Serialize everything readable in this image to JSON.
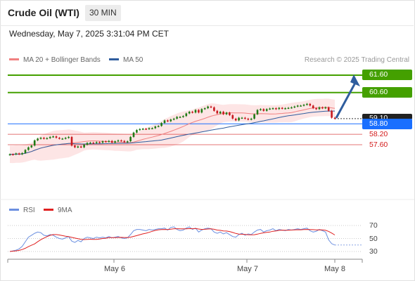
{
  "header": {
    "instrument": "Crude Oil (WTI)",
    "timeframe": "30 MIN",
    "datetime": "Wednesday, May 7, 2025 3:31:04 PM CET"
  },
  "legend": {
    "ma20": "MA 20 + Bollinger Bands",
    "ma50": "MA 50",
    "credit": "Research © 2025 Trading Central",
    "rsi": "RSI",
    "ma9": "9MA"
  },
  "colors": {
    "ma20": "#f08080",
    "ma50": "#2f5d9e",
    "bb_fill": "#fde0e0",
    "resistance": "#44a000",
    "support": "#d31919",
    "pivot": "#1a6fff",
    "last": "#222222",
    "up": "#1e7a14",
    "down": "#c8191e",
    "rsi": "#6b8fe0",
    "rsi_ma": "#e02020"
  },
  "levels": {
    "r2": "61.60",
    "r1": "60.60",
    "last": "59.10",
    "pivot": "58.80",
    "s1": "58.20",
    "s2": "57.60"
  },
  "rsi_ticks": [
    "70",
    "50",
    "30"
  ],
  "x_labels": [
    "May 6",
    "May 7",
    "May 8"
  ],
  "chart_data": {
    "type": "candlestick",
    "price_range": [
      55.0,
      62.3
    ],
    "levels": [
      61.6,
      60.6,
      59.1,
      58.8,
      58.2,
      57.6
    ],
    "close": [
      57.05,
      57.04,
      57.1,
      57.05,
      57.12,
      57.3,
      57.45,
      57.55,
      57.85,
      57.95,
      58.0,
      57.95,
      57.98,
      58.05,
      58.08,
      58.0,
      57.95,
      57.95,
      58.0,
      58.05,
      57.55,
      57.45,
      57.5,
      57.45,
      57.6,
      57.7,
      57.72,
      57.7,
      57.75,
      57.72,
      57.8,
      57.78,
      57.82,
      57.72,
      57.8,
      57.85,
      57.82,
      57.75,
      57.8,
      58.05,
      58.3,
      58.45,
      58.5,
      58.52,
      58.5,
      58.55,
      58.55,
      58.65,
      58.68,
      58.85,
      59.0,
      58.95,
      59.05,
      59.1,
      59.2,
      59.2,
      59.25,
      59.4,
      59.5,
      59.45,
      59.6,
      59.45,
      59.65,
      59.7,
      59.8,
      59.75,
      59.55,
      59.4,
      59.5,
      59.35,
      59.45,
      59.3,
      59.1,
      59.0,
      59.15,
      59.15,
      59.1,
      59.05,
      59.1,
      59.35,
      59.6,
      59.65,
      59.55,
      59.65,
      59.68,
      59.7,
      59.65,
      59.72,
      59.68,
      59.7,
      59.72,
      59.75,
      59.8,
      59.85,
      59.85,
      59.9,
      59.95,
      59.85,
      59.7,
      59.65,
      59.75,
      59.7,
      59.75,
      59.55,
      59.15,
      59.1
    ],
    "rsi": [
      30,
      31,
      32,
      34,
      38,
      45,
      52,
      55,
      58,
      60,
      59,
      55,
      54,
      56,
      55,
      52,
      50,
      49,
      51,
      53,
      46,
      44,
      47,
      45,
      50,
      52,
      51,
      50,
      52,
      51,
      52,
      51,
      53,
      51,
      52,
      53,
      51,
      50,
      51,
      56,
      62,
      64,
      64,
      63,
      62,
      64,
      63,
      64,
      65,
      65,
      66,
      63,
      67,
      68,
      64,
      62,
      63,
      66,
      68,
      64,
      66,
      60,
      63,
      65,
      66,
      65,
      60,
      58,
      60,
      57,
      59,
      56,
      53,
      52,
      56,
      58,
      55,
      57,
      56,
      60,
      63,
      64,
      60,
      62,
      63,
      65,
      62,
      64,
      63,
      62,
      64,
      63,
      64,
      65,
      64,
      65,
      66,
      62,
      60,
      61,
      64,
      62,
      60,
      48,
      42,
      40
    ],
    "rsi_ticks": [
      70,
      50,
      30
    ],
    "x_labels": [
      "May 6",
      "May 7",
      "May 8"
    ]
  }
}
